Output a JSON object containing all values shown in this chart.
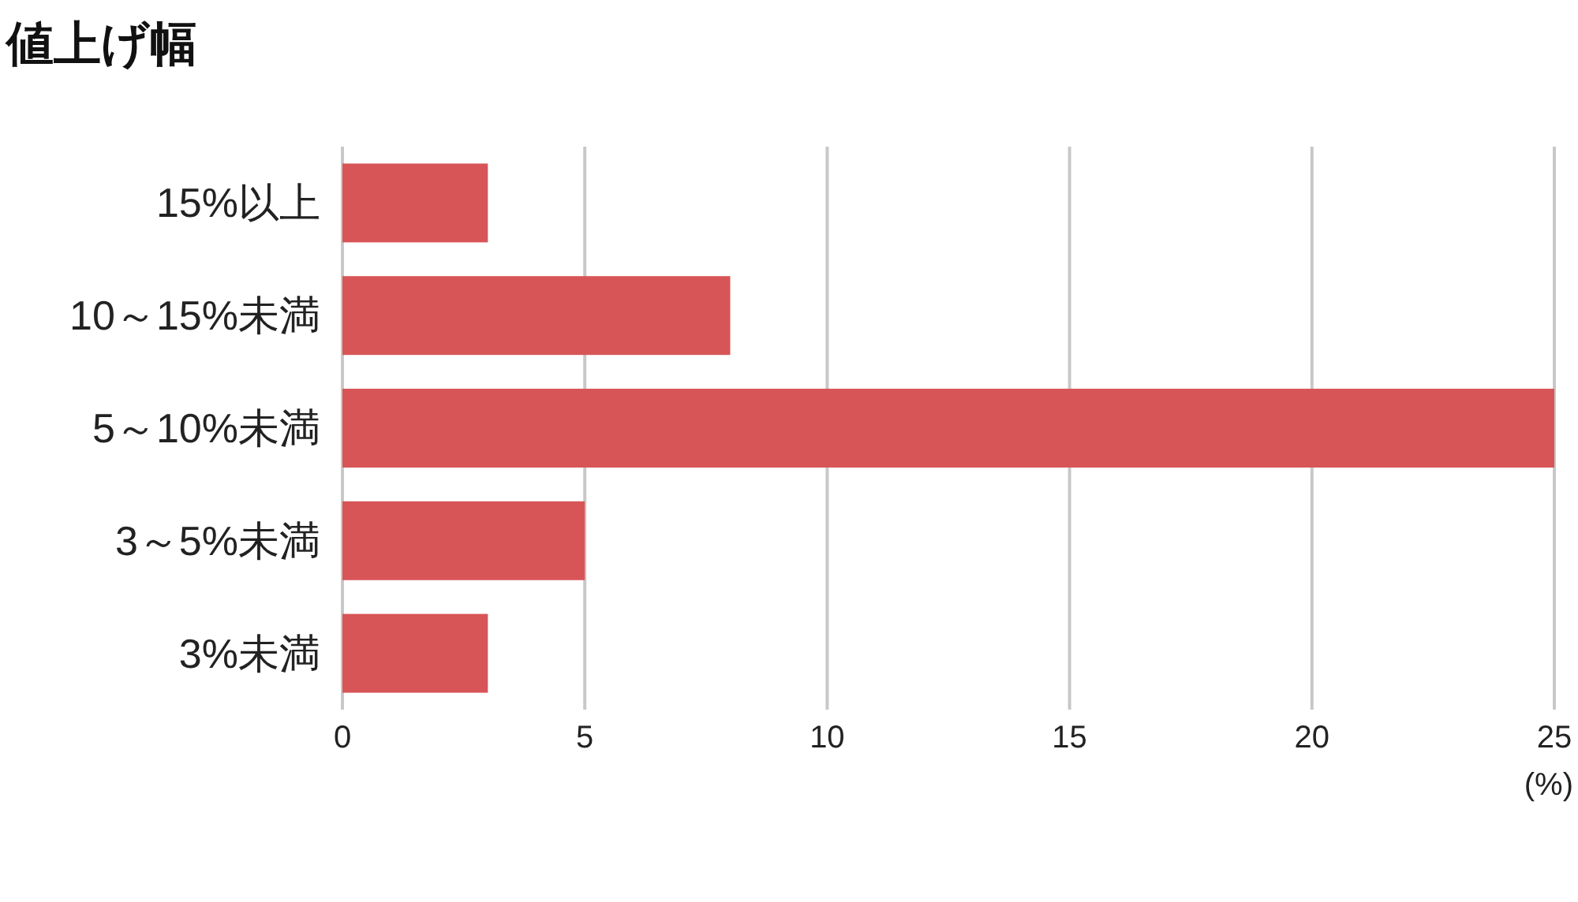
{
  "chart_data": {
    "type": "bar",
    "orientation": "horizontal",
    "title": "値上げ幅",
    "xlabel": "(%)",
    "categories": [
      "15%以上",
      "10～15%未満",
      "5～10%未満",
      "3～5%未満",
      "3%未満"
    ],
    "values": [
      3,
      8,
      25,
      5,
      3
    ],
    "color": "#d85557",
    "xlim": [
      0,
      25
    ],
    "xticks": [
      0,
      5,
      10,
      15,
      20,
      25
    ],
    "grid": "x"
  }
}
